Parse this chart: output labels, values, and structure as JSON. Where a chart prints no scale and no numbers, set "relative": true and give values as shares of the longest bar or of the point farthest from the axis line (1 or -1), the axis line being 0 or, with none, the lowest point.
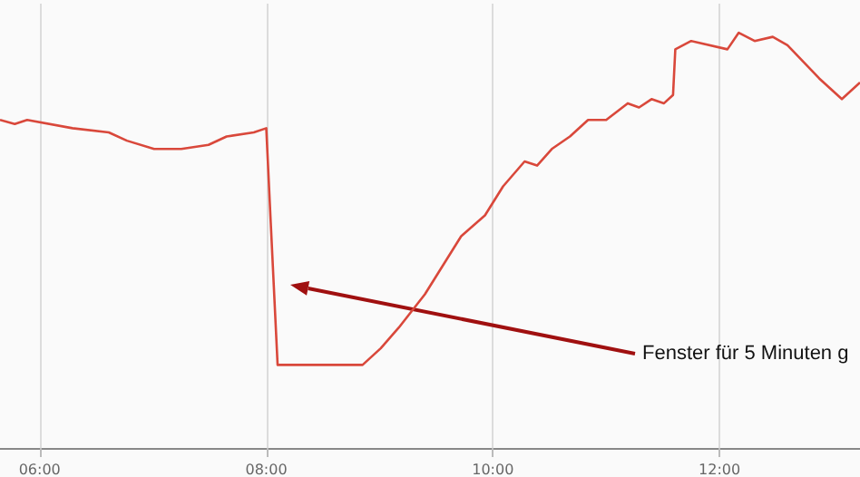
{
  "chart_data": {
    "type": "line",
    "relative": true,
    "color": "#d9483b",
    "x": [
      5.65,
      5.78,
      5.89,
      6.29,
      6.61,
      6.77,
      7.01,
      7.25,
      7.49,
      7.65,
      7.89,
      8.0,
      8.04,
      8.1,
      8.37,
      8.69,
      8.85,
      9.01,
      9.17,
      9.4,
      9.72,
      9.93,
      10.09,
      10.28,
      10.39,
      10.52,
      10.68,
      10.84,
      11.0,
      11.19,
      11.29,
      11.4,
      11.51,
      11.59,
      11.61,
      11.75,
      12.07,
      12.17,
      12.31,
      12.47,
      12.6,
      12.88,
      13.08,
      13.24
    ],
    "values": [
      0.79,
      0.78,
      0.79,
      0.77,
      0.76,
      0.74,
      0.72,
      0.72,
      0.73,
      0.75,
      0.76,
      0.77,
      0.54,
      0.2,
      0.2,
      0.2,
      0.2,
      0.24,
      0.29,
      0.37,
      0.51,
      0.56,
      0.63,
      0.69,
      0.68,
      0.72,
      0.75,
      0.79,
      0.79,
      0.83,
      0.82,
      0.84,
      0.83,
      0.85,
      0.96,
      0.98,
      0.96,
      1,
      0.98,
      0.99,
      0.97,
      0.89,
      0.84,
      0.88
    ],
    "xlim": [
      5.65,
      13.24
    ],
    "xticks": [
      {
        "value": 6,
        "label": "06:00"
      },
      {
        "value": 8,
        "label": "08:00"
      },
      {
        "value": 10,
        "label": "10:00"
      },
      {
        "value": 12,
        "label": "12:00"
      }
    ],
    "grid": "x",
    "marker": "none",
    "annotations": [
      "Fenster für 5 Minuten g"
    ]
  }
}
